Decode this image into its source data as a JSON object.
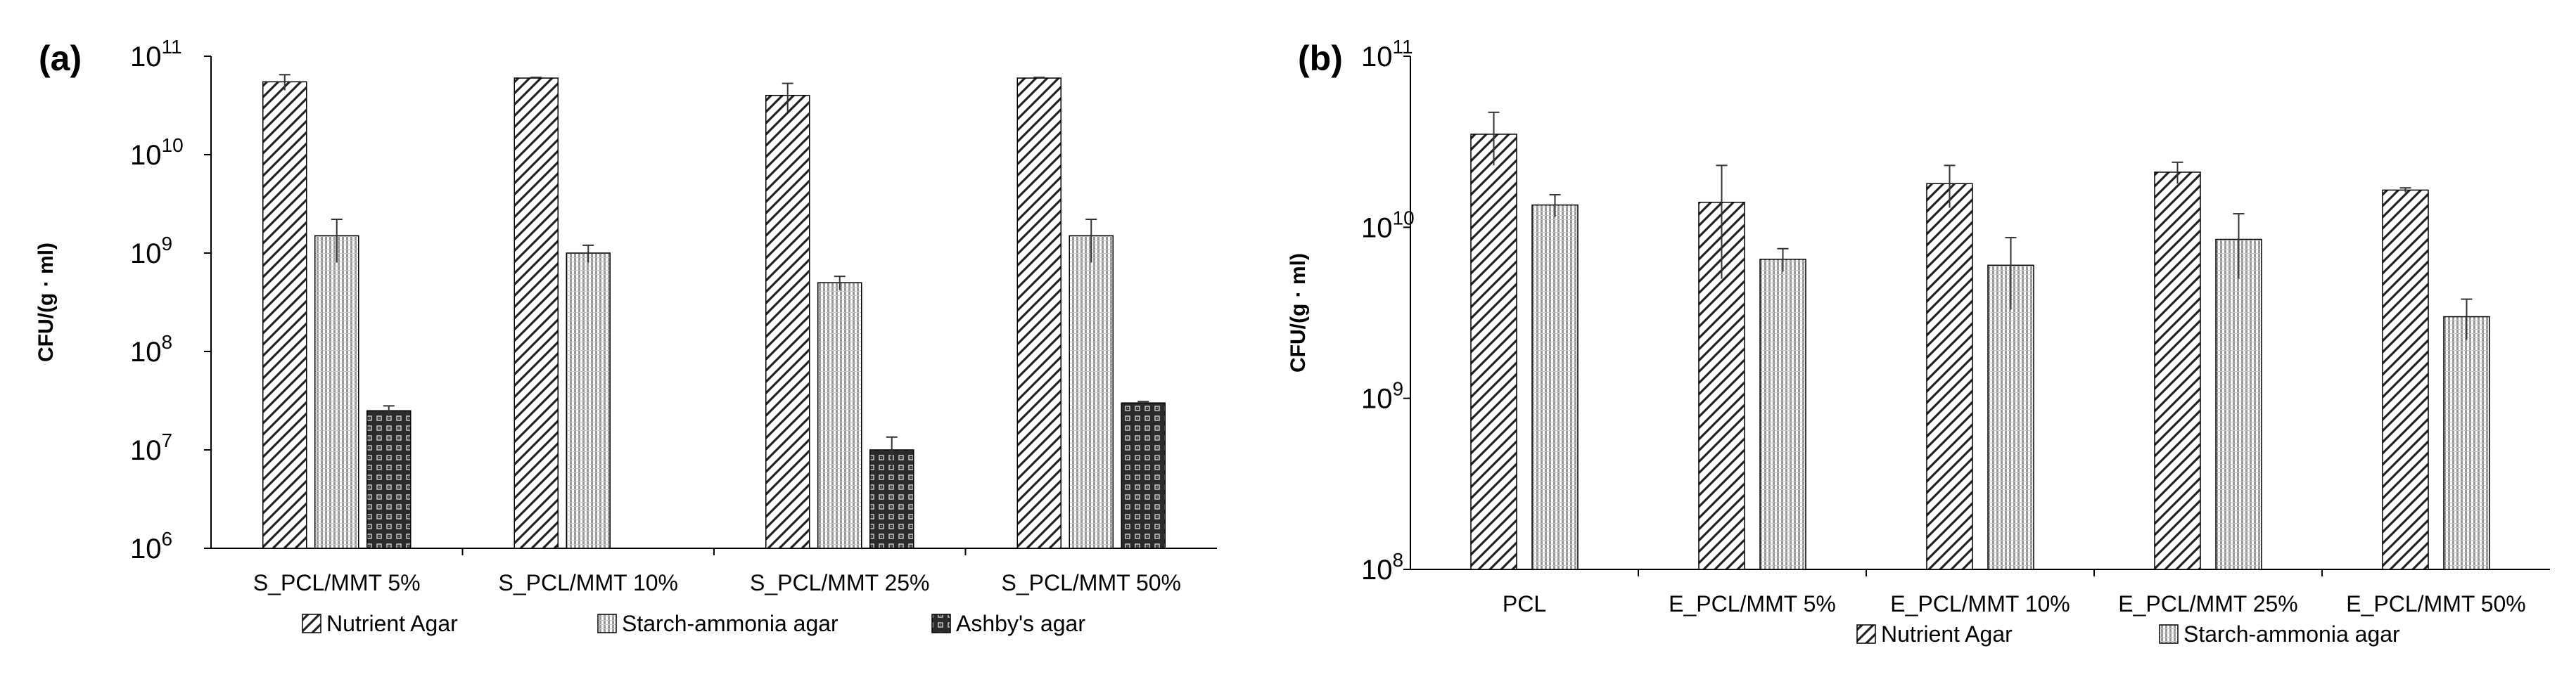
{
  "colors": {
    "axis": "#000000",
    "hatch": "#222222",
    "bar_bg": "#ffffff",
    "background": "#ffffff"
  },
  "chart_data": [
    {
      "panel_label": "(a)",
      "type": "bar",
      "y_scale": "log",
      "ylim": [
        1000000,
        100000000000
      ],
      "ylabel": "CFU/(g · ml)",
      "y_ticks": [
        {
          "base": "10",
          "exp": "6",
          "value": 1000000
        },
        {
          "base": "10",
          "exp": "7",
          "value": 10000000
        },
        {
          "base": "10",
          "exp": "8",
          "value": 100000000
        },
        {
          "base": "10",
          "exp": "9",
          "value": 1000000000
        },
        {
          "base": "10",
          "exp": "10",
          "value": 10000000000
        },
        {
          "base": "10",
          "exp": "11",
          "value": 100000000000
        }
      ],
      "categories": [
        "S_PCL/MMT 5%",
        "S_PCL/MMT 10%",
        "S_PCL/MMT 25%",
        "S_PCL/MMT 50%"
      ],
      "series": [
        {
          "name": "Nutrient Agar",
          "pattern": "diag",
          "values": [
            55000000000,
            60000000000,
            40000000000,
            60000000000
          ],
          "errors": [
            10000000000,
            1000000000,
            13000000000,
            1000000000
          ]
        },
        {
          "name": "Starch-ammonia agar",
          "pattern": "stripe",
          "values": [
            1500000000,
            1000000000,
            500000000,
            1500000000
          ],
          "errors": [
            700000000,
            200000000,
            80000000,
            700000000
          ]
        },
        {
          "name": "Ashby's agar",
          "pattern": "grid",
          "values": [
            25000000,
            null,
            10000000,
            30000000
          ],
          "errors": [
            3000000,
            null,
            3500000,
            1000000
          ]
        }
      ],
      "legend": "bottom-center"
    },
    {
      "panel_label": "(b)",
      "type": "bar",
      "y_scale": "log",
      "ylim": [
        100000000,
        100000000000
      ],
      "ylabel": "CFU/(g · ml)",
      "y_ticks": [
        {
          "base": "10",
          "exp": "8",
          "value": 100000000
        },
        {
          "base": "10",
          "exp": "9",
          "value": 1000000000
        },
        {
          "base": "10",
          "exp": "10",
          "value": 10000000000
        },
        {
          "base": "10",
          "exp": "11",
          "value": 100000000000
        }
      ],
      "categories": [
        "PCL",
        "E_PCL/MMT 5%",
        "E_PCL/MMT 10%",
        "E_PCL/MMT 25%",
        "E_PCL/MMT 50%"
      ],
      "series": [
        {
          "name": "Nutrient Agar",
          "pattern": "diag",
          "values": [
            35000000000,
            14000000000,
            18000000000,
            21000000000,
            16500000000
          ],
          "errors": [
            12000000000,
            9000000000,
            5000000000,
            3000000000,
            500000000
          ]
        },
        {
          "name": "Starch-ammonia agar",
          "pattern": "stripe",
          "values": [
            13500000000,
            6500000000,
            6000000000,
            8500000000,
            3000000000
          ],
          "errors": [
            2000000000,
            1000000000,
            2700000000,
            3500000000,
            800000000
          ]
        }
      ],
      "legend": "bottom-center"
    }
  ]
}
